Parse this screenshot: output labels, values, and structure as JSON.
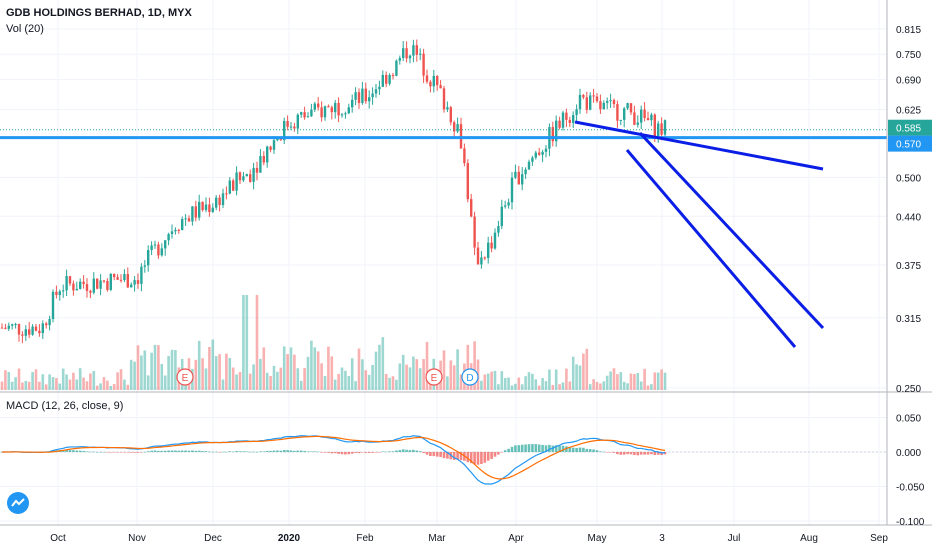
{
  "header": {
    "title": "GDB HOLDINGS BERHAD, 1D, MYX",
    "volume_label": "Vol (20)",
    "macd_label": "MACD (12, 26, close, 9)"
  },
  "colors": {
    "up": "#26a69a",
    "down": "#ef5350",
    "trendline": "#0a1ee6",
    "support": "#2196f3",
    "macd": "#2196f3",
    "signal": "#ff6d00"
  },
  "chart_data": [
    {
      "type": "candlestick",
      "x_ticks": [
        "Oct",
        "Nov",
        "Dec",
        "2020",
        "Feb",
        "Mar",
        "Apr",
        "May",
        "3",
        "Jul",
        "Aug",
        "Sep"
      ],
      "y_ticks": [
        0.815,
        0.75,
        0.69,
        0.625,
        0.5,
        0.44,
        0.375,
        0.315,
        0.25
      ],
      "y_scale": "log",
      "price_labels": [
        {
          "value": "0.585",
          "kind": "last-price"
        },
        {
          "value": "0.570",
          "kind": "support"
        }
      ],
      "key_closes": [
        {
          "date": "Sep",
          "close": 0.305
        },
        {
          "date": "Oct",
          "close": 0.35
        },
        {
          "date": "Nov",
          "close": 0.36
        },
        {
          "date": "Dec",
          "close": 0.46
        },
        {
          "date": "2020",
          "close": 0.6
        },
        {
          "date": "Feb",
          "close": 0.65
        },
        {
          "date": "Feb-late",
          "close": 0.77
        },
        {
          "date": "Mar",
          "close": 0.58
        },
        {
          "date": "Mar-low",
          "close": 0.38
        },
        {
          "date": "Apr",
          "close": 0.5
        },
        {
          "date": "Apr-late",
          "close": 0.65
        },
        {
          "date": "May",
          "close": 0.625
        },
        {
          "date": "3",
          "close": 0.585
        }
      ],
      "event_markers": [
        {
          "label": "E",
          "date": "Dec"
        },
        {
          "label": "E",
          "date": "Mar"
        },
        {
          "label": "D",
          "date": "Mar"
        }
      ]
    },
    {
      "type": "line",
      "name": "MACD",
      "y_ticks": [
        0.05,
        0.0,
        -0.05,
        -0.1
      ]
    }
  ]
}
